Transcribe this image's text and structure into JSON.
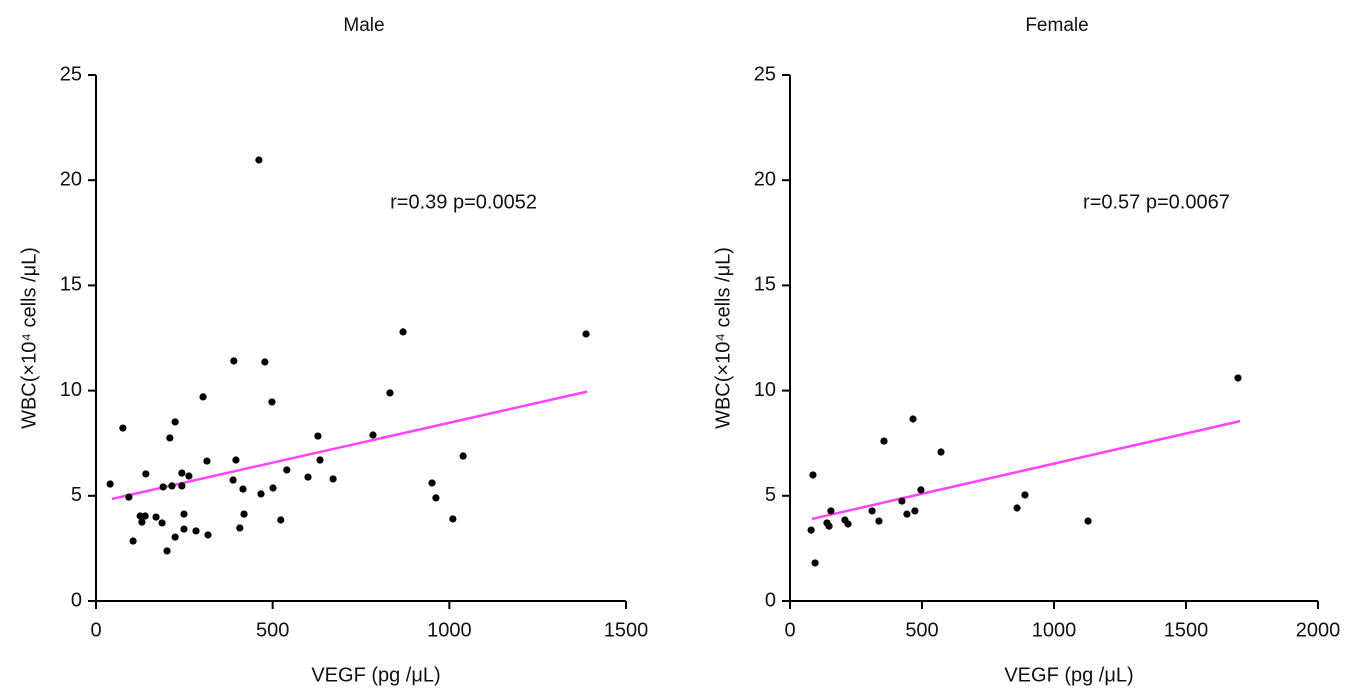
{
  "chart_data": [
    {
      "type": "scatter",
      "title": "Male",
      "x_label": "VEGF (pg /μL)",
      "y_label": "WBC(×10⁴ cells /μL)",
      "annotation": "r=0.39   p=0.0052",
      "xlim": [
        0,
        1500
      ],
      "xticks": [
        0,
        500,
        1000,
        1500
      ],
      "ylim": [
        0,
        25
      ],
      "yticks": [
        0,
        5,
        10,
        15,
        20,
        25
      ],
      "points": {
        "color": "#000000",
        "x": [
          40,
          76,
          93,
          105,
          125,
          139,
          130,
          141,
          170,
          187,
          190,
          201,
          209,
          224,
          215,
          224,
          243,
          243,
          249,
          249,
          263,
          283,
          303,
          314,
          317,
          388,
          390,
          396,
          407,
          416,
          419,
          461,
          467,
          478,
          498,
          501,
          523,
          540,
          600,
          628,
          634,
          671,
          784,
          832,
          869,
          951,
          962,
          1010,
          1039,
          1387
        ],
        "y": [
          5.56,
          8.22,
          4.94,
          2.85,
          4.04,
          4.04,
          3.75,
          6.04,
          3.99,
          3.71,
          5.42,
          2.38,
          7.75,
          8.51,
          5.47,
          3.04,
          5.47,
          6.08,
          3.42,
          4.13,
          5.94,
          3.33,
          9.7,
          6.65,
          3.14,
          5.75,
          11.41,
          6.7,
          3.47,
          5.32,
          4.13,
          20.96,
          5.09,
          11.36,
          9.46,
          5.37,
          3.85,
          6.23,
          5.89,
          7.84,
          6.7,
          5.8,
          7.89,
          9.89,
          12.79,
          5.61,
          4.9,
          3.9,
          6.89,
          12.69
        ]
      },
      "fit_line": {
        "color": "#ff44ff",
        "x": [
          45,
          1390
        ],
        "y": [
          4.85,
          9.95
        ]
      }
    },
    {
      "type": "scatter",
      "title": "Female",
      "x_label": "VEGF (pg /μL)",
      "y_label": "WBC(×10⁴ cells /μL)",
      "annotation": "r=0.57   p=0.0067",
      "xlim": [
        0,
        2000
      ],
      "xticks": [
        0,
        500,
        1000,
        1500,
        2000
      ],
      "ylim": [
        0,
        25
      ],
      "yticks": [
        0,
        5,
        10,
        15,
        20,
        25
      ],
      "points": {
        "color": "#000000",
        "x": [
          87,
          80,
          95,
          140,
          148,
          155,
          208,
          220,
          311,
          337,
          356,
          424,
          443,
          466,
          473,
          496,
          572,
          860,
          890,
          1129,
          1697
        ],
        "y": [
          5.99,
          3.37,
          1.81,
          3.71,
          3.56,
          4.28,
          3.85,
          3.66,
          4.28,
          3.8,
          7.6,
          4.75,
          4.13,
          8.65,
          4.28,
          5.28,
          7.08,
          4.42,
          5.04,
          3.8,
          10.6
        ]
      },
      "fit_line": {
        "color": "#ff44ff",
        "x": [
          83,
          1705
        ],
        "y": [
          3.9,
          8.55
        ]
      }
    }
  ]
}
